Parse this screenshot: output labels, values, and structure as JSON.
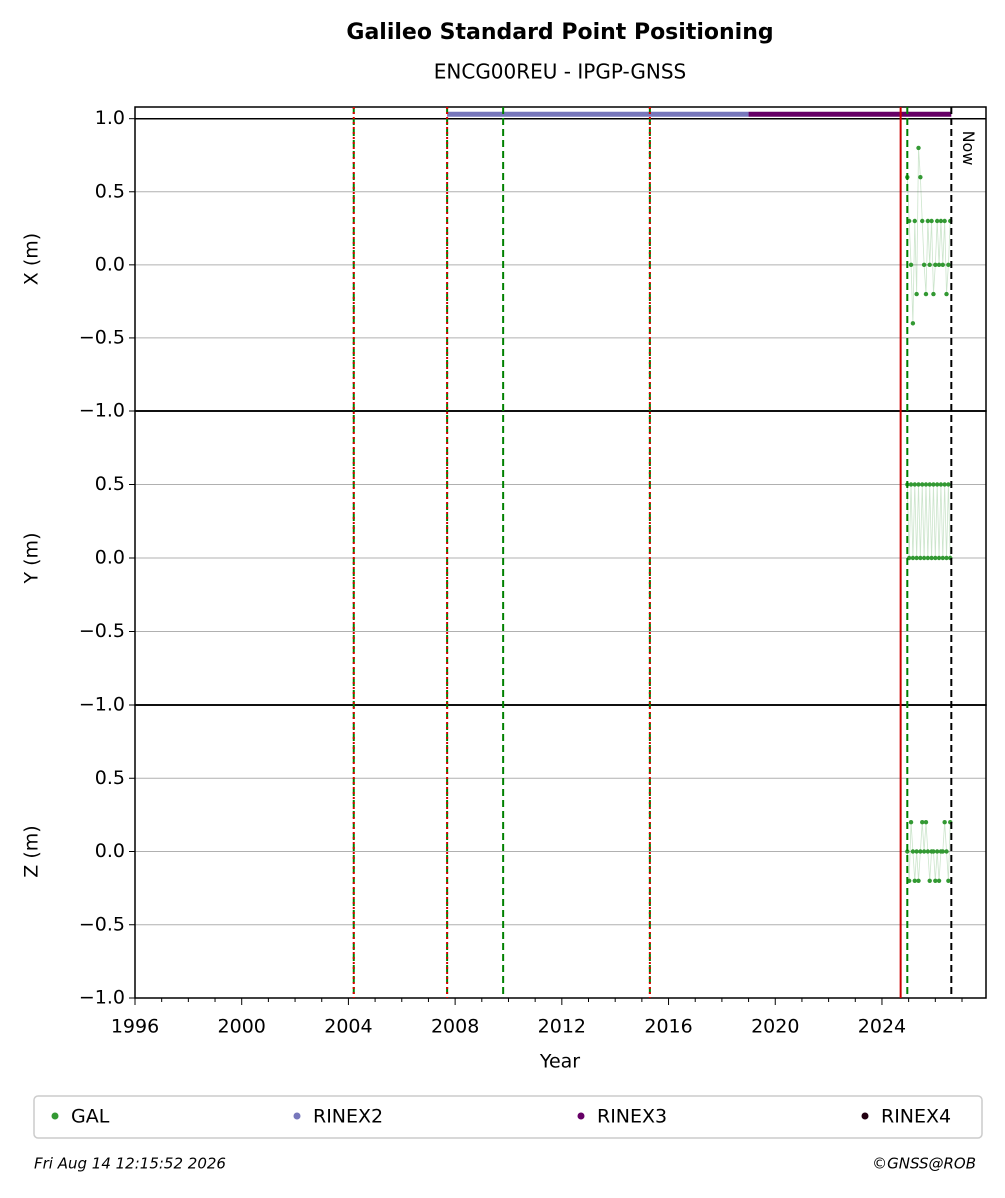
{
  "chart_data": {
    "type": "scatter",
    "title": "Galileo Standard Point Positioning",
    "subtitle": "ENCG00REU - IPGP-GNSS",
    "xlabel": "Year",
    "xlim": [
      1996,
      2027.9
    ],
    "xticks": [
      1996,
      2000,
      2004,
      2008,
      2012,
      2016,
      2020,
      2024
    ],
    "xminorticks": [
      1997,
      1998,
      1999,
      2001,
      2002,
      2003,
      2005,
      2006,
      2007,
      2009,
      2010,
      2011,
      2013,
      2014,
      2015,
      2017,
      2018,
      2019,
      2021,
      2022,
      2023,
      2025,
      2026,
      2027
    ],
    "grid": true,
    "hline": 1,
    "bar_y": 1.03,
    "events": [
      {
        "x": 2004.2,
        "color": "#008000",
        "style": "dashed"
      },
      {
        "x": 2004.2,
        "color": "#dd0000",
        "style": "dotted"
      },
      {
        "x": 2007.7,
        "color": "#008000",
        "style": "dashed"
      },
      {
        "x": 2007.7,
        "color": "#dd0000",
        "style": "dotted"
      },
      {
        "x": 2009.8,
        "color": "#008000",
        "style": "dashed"
      },
      {
        "x": 2015.3,
        "color": "#008000",
        "style": "dashed"
      },
      {
        "x": 2015.3,
        "color": "#dd0000",
        "style": "dotted"
      },
      {
        "x": 2024.7,
        "color": "#cc0000",
        "style": "solid"
      },
      {
        "x": 2024.95,
        "color": "#008000",
        "style": "dashed"
      }
    ],
    "now": {
      "x": 2026.6,
      "label": "Now"
    },
    "legend": [
      {
        "name": "GAL",
        "color": "#339933"
      },
      {
        "name": "RINEX2",
        "color": "#7777bb",
        "span": [
          2007.7,
          2019.0
        ]
      },
      {
        "name": "RINEX3",
        "color": "#660066",
        "span": [
          2019.0,
          2026.6
        ]
      },
      {
        "name": "RINEX4",
        "color": "#220011"
      }
    ],
    "panels": [
      {
        "ylabel": "X (m)",
        "ylim": [
          -1,
          1.08
        ],
        "yticks": [
          {
            "value": -1,
            "label": "−1.0"
          },
          {
            "value": -0.5,
            "label": "−0.5"
          },
          {
            "value": 0,
            "label": "0.0"
          },
          0.5,
          {
            "value": 1,
            "label": "1.0"
          }
        ],
        "series": [
          {
            "color": "#339933",
            "x": [
              2024.95,
              2025.02,
              2025.09,
              2025.16,
              2025.23,
              2025.3,
              2025.37,
              2025.44,
              2025.51,
              2025.58,
              2025.65,
              2025.72,
              2025.79,
              2025.86,
              2025.93,
              2026.0,
              2026.07,
              2026.14,
              2026.21,
              2026.28,
              2026.35,
              2026.42,
              2026.49,
              2026.56
            ],
            "values": [
              0.6,
              0.3,
              0,
              -0.4,
              0.3,
              -0.2,
              0.8,
              0.6,
              0.3,
              0,
              -0.2,
              0.3,
              0,
              0.3,
              -0.2,
              0,
              0.3,
              0,
              0.3,
              0,
              0.3,
              -0.2,
              0,
              0.3
            ]
          }
        ]
      },
      {
        "ylabel": "Y (m)",
        "ylim": [
          -1,
          1
        ],
        "yticks": [
          {
            "value": -1,
            "label": "−1.0"
          },
          {
            "value": -0.5,
            "label": "−0.5"
          },
          {
            "value": 0,
            "label": "0.0"
          },
          0.5
        ],
        "series": [
          {
            "color": "#339933",
            "x": [
              2024.95,
              2025.02,
              2025.09,
              2025.16,
              2025.23,
              2025.3,
              2025.37,
              2025.44,
              2025.51,
              2025.58,
              2025.65,
              2025.72,
              2025.79,
              2025.86,
              2025.93,
              2026.0,
              2026.07,
              2026.14,
              2026.21,
              2026.28,
              2026.35,
              2026.42,
              2026.49,
              2026.56
            ],
            "values": [
              0.5,
              0,
              0.5,
              0,
              0.5,
              0,
              0.5,
              0,
              0.5,
              0,
              0.5,
              0,
              0.5,
              0,
              0.5,
              0,
              0.5,
              0,
              0.5,
              0,
              0.5,
              0,
              0.5,
              0
            ]
          }
        ]
      },
      {
        "ylabel": "Z (m)",
        "ylim": [
          -1,
          1
        ],
        "yticks": [
          {
            "value": -1,
            "label": "−1.0"
          },
          {
            "value": -0.5,
            "label": "−0.5"
          },
          {
            "value": 0,
            "label": "0.0"
          },
          0.5
        ],
        "series": [
          {
            "color": "#339933",
            "x": [
              2024.95,
              2025.02,
              2025.09,
              2025.16,
              2025.23,
              2025.3,
              2025.37,
              2025.44,
              2025.51,
              2025.58,
              2025.65,
              2025.72,
              2025.79,
              2025.86,
              2025.93,
              2026.0,
              2026.07,
              2026.14,
              2026.21,
              2026.28,
              2026.35,
              2026.42,
              2026.49,
              2026.56
            ],
            "values": [
              0,
              -0.2,
              0.2,
              0,
              -0.2,
              0,
              -0.2,
              0,
              0.2,
              0,
              0.2,
              0,
              -0.2,
              0,
              0,
              -0.2,
              0,
              -0.2,
              0,
              0,
              0.2,
              0,
              -0.2,
              0.2
            ]
          }
        ]
      }
    ],
    "footer": {
      "date": "Fri Aug 14 12:15:52 2026",
      "credit": "©GNSS@ROB"
    }
  }
}
